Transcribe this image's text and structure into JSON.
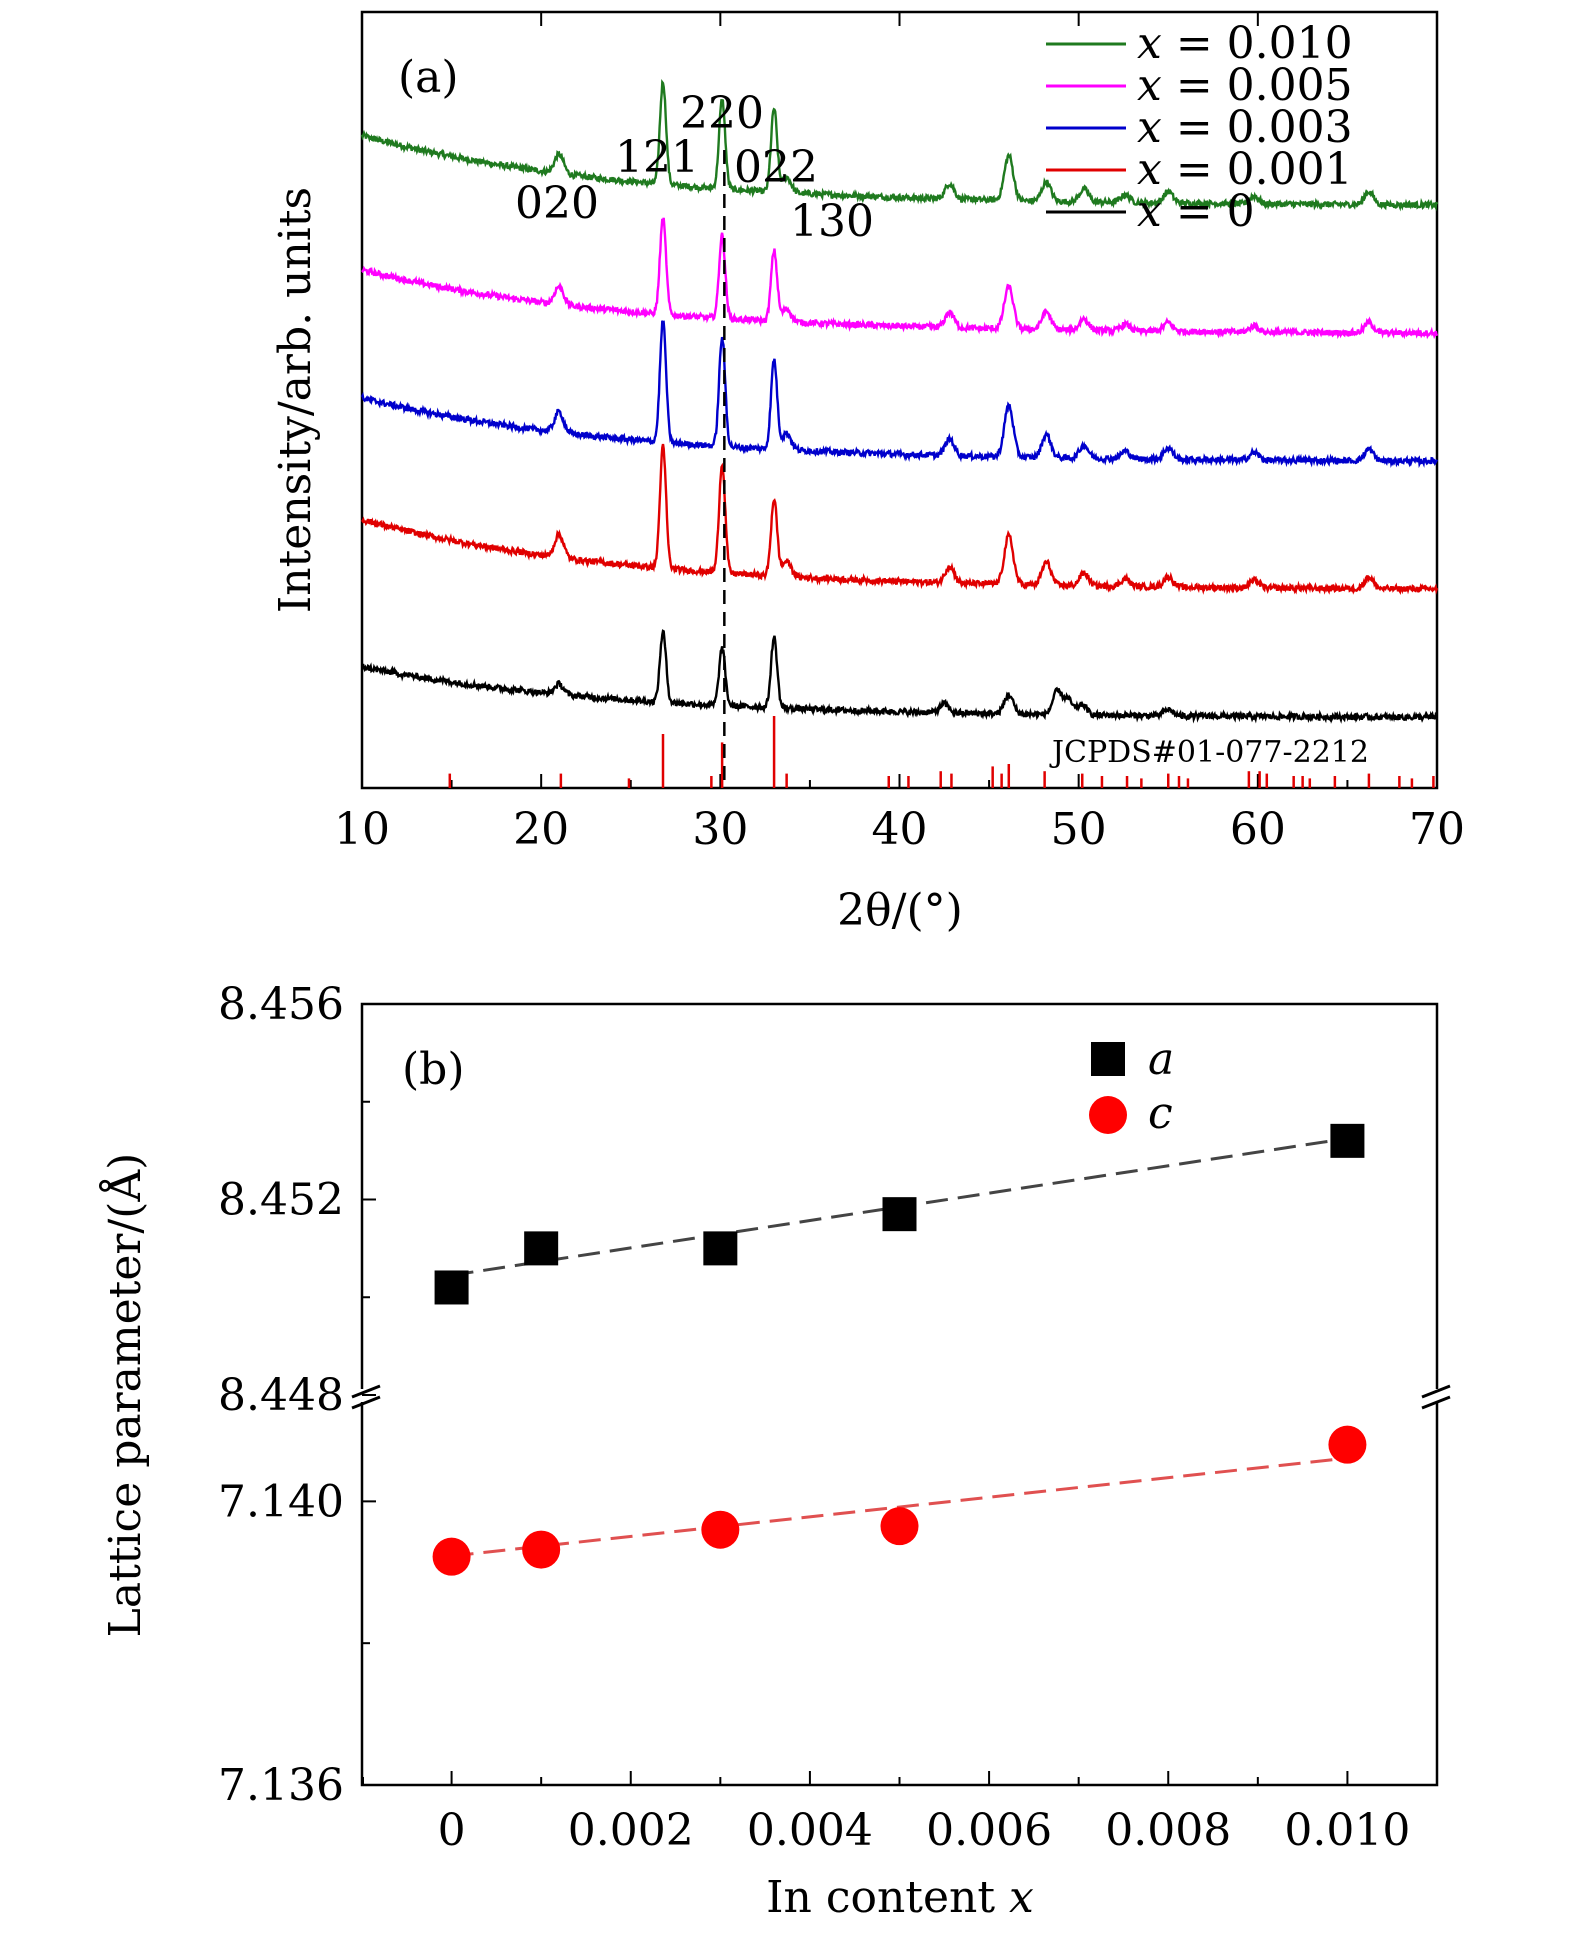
{
  "chart_data": [
    {
      "panel": "(a)",
      "type": "line",
      "xlabel": "2θ/(°)",
      "ylabel": "Intensity/arb. units",
      "xlim": [
        10,
        70
      ],
      "x_ticks": [
        "10",
        "20",
        "30",
        "40",
        "50",
        "60",
        "70"
      ],
      "reference_label": "JCPDS#01-077-2212",
      "reference_line_x": 30.0,
      "peak_labels": [
        {
          "text": "020",
          "x": 21.0
        },
        {
          "text": "121",
          "x": 26.8
        },
        {
          "text": "220",
          "x": 30.1
        },
        {
          "text": "022",
          "x": 33.0
        },
        {
          "text": "130",
          "x": 33.6
        }
      ],
      "series": [
        {
          "name": "x = 0.010",
          "x_value": "0.010",
          "color": "#1f7a1f",
          "offset": 4.0,
          "baseline_start": 0.55,
          "baseline_end": 0.0,
          "peaks": [
            [
              21.0,
              0.15
            ],
            [
              26.8,
              0.8
            ],
            [
              30.1,
              0.7
            ],
            [
              33.0,
              0.65
            ],
            [
              33.7,
              0.12
            ],
            [
              42.8,
              0.12
            ],
            [
              46.1,
              0.35
            ],
            [
              48.2,
              0.15
            ],
            [
              50.3,
              0.1
            ],
            [
              52.6,
              0.06
            ],
            [
              55.0,
              0.09
            ],
            [
              59.8,
              0.06
            ],
            [
              66.2,
              0.1
            ]
          ]
        },
        {
          "name": "x = 0.005",
          "x_value": "0.005",
          "color": "#ff00ff",
          "offset": 3.0,
          "baseline_start": 0.5,
          "baseline_end": 0.0,
          "peaks": [
            [
              21.0,
              0.14
            ],
            [
              26.8,
              0.75
            ],
            [
              30.1,
              0.65
            ],
            [
              33.0,
              0.55
            ],
            [
              33.7,
              0.1
            ],
            [
              42.8,
              0.12
            ],
            [
              46.1,
              0.33
            ],
            [
              48.2,
              0.14
            ],
            [
              50.3,
              0.09
            ],
            [
              52.6,
              0.05
            ],
            [
              55.0,
              0.07
            ],
            [
              59.8,
              0.05
            ],
            [
              66.2,
              0.08
            ]
          ]
        },
        {
          "name": "x = 0.003",
          "x_value": "0.003",
          "color": "#0000cc",
          "offset": 2.0,
          "baseline_start": 0.5,
          "baseline_end": 0.0,
          "peaks": [
            [
              21.0,
              0.16
            ],
            [
              26.8,
              0.95
            ],
            [
              30.1,
              0.85
            ],
            [
              33.0,
              0.7
            ],
            [
              33.7,
              0.13
            ],
            [
              42.8,
              0.13
            ],
            [
              46.1,
              0.4
            ],
            [
              48.2,
              0.18
            ],
            [
              50.3,
              0.1
            ],
            [
              52.6,
              0.06
            ],
            [
              55.0,
              0.09
            ],
            [
              59.8,
              0.06
            ],
            [
              66.2,
              0.09
            ]
          ]
        },
        {
          "name": "x = 0.001",
          "x_value": "0.001",
          "color": "#e00000",
          "offset": 1.0,
          "baseline_start": 0.55,
          "baseline_end": 0.0,
          "peaks": [
            [
              21.0,
              0.18
            ],
            [
              26.8,
              0.95
            ],
            [
              30.1,
              0.85
            ],
            [
              33.0,
              0.6
            ],
            [
              33.7,
              0.12
            ],
            [
              42.8,
              0.13
            ],
            [
              46.1,
              0.38
            ],
            [
              48.2,
              0.18
            ],
            [
              50.3,
              0.1
            ],
            [
              52.6,
              0.06
            ],
            [
              55.0,
              0.08
            ],
            [
              59.8,
              0.06
            ],
            [
              66.2,
              0.09
            ]
          ]
        },
        {
          "name": "x = 0",
          "x_value": "0",
          "color": "#000000",
          "offset": 0.0,
          "baseline_start": 0.4,
          "baseline_end": 0.0,
          "peaks": [
            [
              21.0,
              0.08
            ],
            [
              26.8,
              0.55
            ],
            [
              30.1,
              0.45
            ],
            [
              33.0,
              0.55
            ],
            [
              42.5,
              0.07
            ],
            [
              46.1,
              0.15
            ],
            [
              48.8,
              0.18
            ],
            [
              49.4,
              0.12
            ],
            [
              50.2,
              0.08
            ],
            [
              55.0,
              0.05
            ]
          ]
        }
      ],
      "reference_sticks": [
        [
          14.9,
          0.12
        ],
        [
          21.1,
          0.12
        ],
        [
          24.9,
          0.08
        ],
        [
          26.8,
          0.45
        ],
        [
          29.5,
          0.1
        ],
        [
          30.1,
          0.38
        ],
        [
          33.0,
          0.6
        ],
        [
          33.7,
          0.12
        ],
        [
          39.4,
          0.1
        ],
        [
          40.5,
          0.1
        ],
        [
          42.3,
          0.14
        ],
        [
          42.9,
          0.12
        ],
        [
          45.2,
          0.18
        ],
        [
          45.7,
          0.12
        ],
        [
          46.1,
          0.2
        ],
        [
          48.1,
          0.14
        ],
        [
          50.2,
          0.12
        ],
        [
          51.3,
          0.1
        ],
        [
          52.7,
          0.1
        ],
        [
          53.5,
          0.08
        ],
        [
          55.0,
          0.12
        ],
        [
          55.6,
          0.1
        ],
        [
          56.1,
          0.08
        ],
        [
          59.5,
          0.14
        ],
        [
          60.1,
          0.14
        ],
        [
          60.5,
          0.12
        ],
        [
          62.0,
          0.1
        ],
        [
          62.5,
          0.1
        ],
        [
          62.9,
          0.08
        ],
        [
          64.3,
          0.1
        ],
        [
          66.2,
          0.12
        ],
        [
          67.9,
          0.1
        ],
        [
          68.6,
          0.08
        ],
        [
          69.8,
          0.1
        ]
      ]
    },
    {
      "panel": "(b)",
      "type": "scatter",
      "xlabel": "In content x",
      "ylabel": "Lattice parameter/(Å)",
      "xlim": [
        -0.001,
        0.011
      ],
      "x_ticks": [
        "0",
        "0.002",
        "0.004",
        "0.006",
        "0.008",
        "0.010"
      ],
      "upper": {
        "ylim": [
          8.448,
          8.456
        ],
        "y_ticks": [
          "8.448",
          "8.452",
          "8.456"
        ]
      },
      "lower": {
        "ylim": [
          7.136,
          7.1415
        ],
        "y_ticks": [
          "7.136",
          "7.140"
        ]
      },
      "series": [
        {
          "name": "a",
          "marker": "square",
          "color": "#000000",
          "fit_color": "#444444",
          "x": [
            0,
            0.001,
            0.003,
            0.005,
            0.01
          ],
          "y": [
            8.4502,
            8.451,
            8.451,
            8.4517,
            8.4532
          ],
          "fit": [
            8.45045,
            8.45325
          ]
        },
        {
          "name": "c",
          "marker": "circle",
          "color": "#ff0000",
          "fit_color": "#e05050",
          "x": [
            0,
            0.001,
            0.003,
            0.005,
            0.01
          ],
          "y": [
            7.13922,
            7.13932,
            7.1396,
            7.13965,
            7.1408
          ],
          "fit": [
            7.13923,
            7.14061
          ]
        }
      ]
    }
  ]
}
